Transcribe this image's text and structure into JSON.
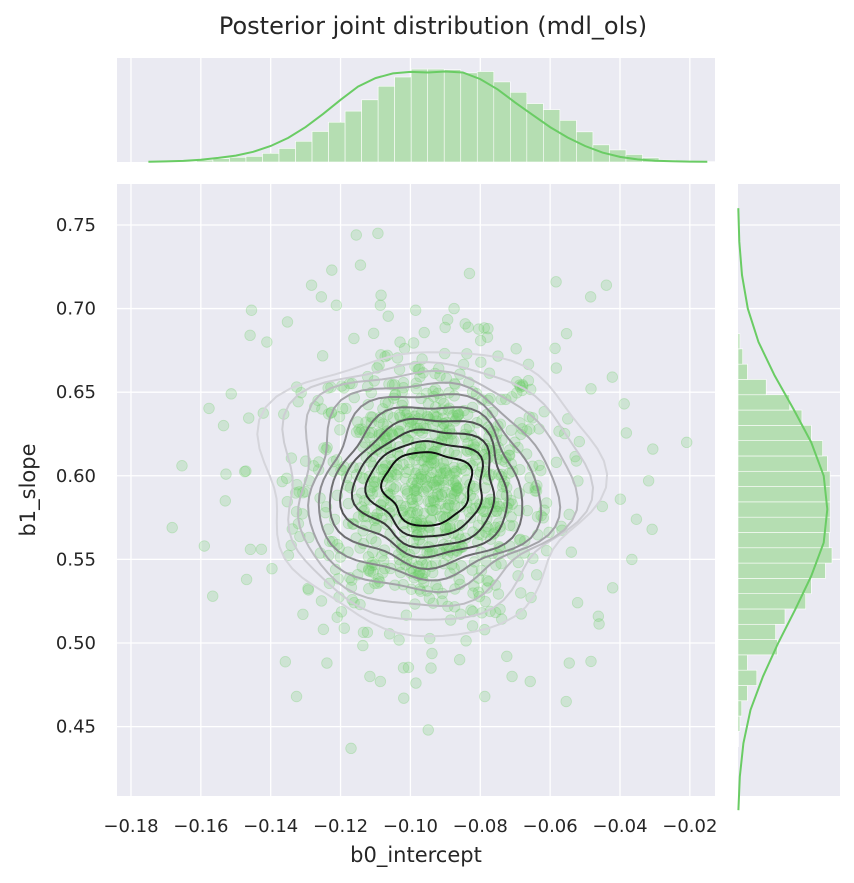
{
  "chart_data": {
    "type": "scatter",
    "title": "Posterior joint distribution (mdl_ols)",
    "xlabel": "b0_intercept",
    "ylabel": "b1_slope",
    "xlim": [
      -0.184,
      -0.0128
    ],
    "ylim": [
      0.4085,
      0.7745
    ],
    "x_ticks": [
      -0.18,
      -0.16,
      -0.14,
      -0.12,
      -0.1,
      -0.08,
      -0.06,
      -0.04,
      -0.02
    ],
    "x_tick_labels": [
      "−0.18",
      "−0.16",
      "−0.14",
      "−0.12",
      "−0.10",
      "−0.08",
      "−0.06",
      "−0.04",
      "−0.02"
    ],
    "y_ticks": [
      0.45,
      0.5,
      0.55,
      0.6,
      0.65,
      0.7,
      0.75
    ],
    "y_tick_labels": [
      "0.45",
      "0.50",
      "0.55",
      "0.60",
      "0.65",
      "0.70",
      "0.75"
    ],
    "grid": true,
    "colors": {
      "panel_bg": "#eaeaf2",
      "grid": "#ffffff",
      "points": "#6acc64",
      "hist_fill": "#b5deb2",
      "kde_line": "#6acc64",
      "contour_dark": "#111111",
      "contour_light": "#e2e2e8"
    },
    "points_summary": {
      "x_mean": -0.095,
      "x_sd": 0.018,
      "y_mean": 0.593,
      "y_sd": 0.041,
      "n_shown": 900
    },
    "points": [
      [
        -0.1682,
        0.569
      ],
      [
        -0.1654,
        0.606
      ],
      [
        -0.159,
        0.558
      ],
      [
        -0.1566,
        0.528
      ],
      [
        -0.1455,
        0.699
      ],
      [
        -0.1411,
        0.68
      ],
      [
        -0.1326,
        0.468
      ],
      [
        -0.117,
        0.437
      ],
      [
        -0.1155,
        0.744
      ],
      [
        -0.1093,
        0.745
      ],
      [
        -0.1086,
        0.702
      ],
      [
        -0.1084,
        0.708
      ],
      [
        -0.0949,
        0.448
      ],
      [
        -0.0831,
        0.721
      ],
      [
        -0.0583,
        0.716
      ],
      [
        -0.0554,
        0.465
      ],
      [
        -0.0483,
        0.489
      ],
      [
        -0.0484,
        0.707
      ],
      [
        -0.0439,
        0.714
      ],
      [
        -0.0366,
        0.55
      ],
      [
        -0.0308,
        0.568
      ],
      [
        -0.0318,
        0.597
      ],
      [
        -0.0306,
        0.616
      ],
      [
        -0.0209,
        0.62
      ],
      [
        -0.1225,
        0.723
      ],
      [
        -0.1143,
        0.726
      ],
      [
        -0.1283,
        0.714
      ],
      [
        -0.1255,
        0.707
      ],
      [
        -0.1212,
        0.702
      ],
      [
        -0.0985,
        0.699
      ],
      [
        -0.0875,
        0.7
      ],
      [
        -0.0778,
        0.688
      ],
      [
        -0.1019,
        0.467
      ],
      [
        -0.1086,
        0.477
      ],
      [
        -0.1239,
        0.488
      ],
      [
        -0.0941,
        0.485
      ],
      [
        -0.0859,
        0.49
      ],
      [
        -0.0787,
        0.468
      ],
      [
        -0.0709,
        0.48
      ],
      [
        -0.0657,
        0.477
      ],
      [
        -0.0724,
        0.492
      ],
      [
        -0.1528,
        0.601
      ],
      [
        -0.1535,
        0.63
      ],
      [
        -0.1513,
        0.649
      ],
      [
        -0.1459,
        0.684
      ],
      [
        -0.153,
        0.585
      ],
      [
        -0.1458,
        0.556
      ],
      [
        -0.1469,
        0.538
      ],
      [
        -0.0388,
        0.643
      ],
      [
        -0.0422,
        0.659
      ],
      [
        -0.0483,
        0.652
      ],
      [
        -0.0353,
        0.574
      ],
      [
        -0.0399,
        0.586
      ],
      [
        -0.0421,
        0.533
      ],
      [
        -0.0462,
        0.516
      ],
      [
        -0.0553,
        0.685
      ],
      [
        -0.1352,
        0.692
      ],
      [
        -0.1116,
        0.48
      ]
    ]
  },
  "marginals": {
    "top_hist": {
      "bin_start": -0.166,
      "bin_width": 0.00473,
      "densities": [
        0.004,
        0.01,
        0.018,
        0.025,
        0.03,
        0.046,
        0.072,
        0.11,
        0.162,
        0.211,
        0.27,
        0.33,
        0.402,
        0.451,
        0.493,
        0.493,
        0.49,
        0.473,
        0.48,
        0.425,
        0.37,
        0.31,
        0.278,
        0.221,
        0.16,
        0.091,
        0.064,
        0.04,
        0.022,
        0.01,
        0.006,
        0.003,
        0.002
      ]
    },
    "top_kde": {
      "x": [
        -0.175,
        -0.17,
        -0.165,
        -0.16,
        -0.155,
        -0.15,
        -0.145,
        -0.14,
        -0.135,
        -0.13,
        -0.125,
        -0.12,
        -0.115,
        -0.11,
        -0.105,
        -0.1,
        -0.095,
        -0.09,
        -0.085,
        -0.08,
        -0.075,
        -0.07,
        -0.065,
        -0.06,
        -0.055,
        -0.05,
        -0.045,
        -0.04,
        -0.035,
        -0.03,
        -0.025,
        -0.02,
        -0.015
      ],
      "y": [
        0.001,
        0.003,
        0.006,
        0.012,
        0.022,
        0.034,
        0.054,
        0.085,
        0.128,
        0.185,
        0.255,
        0.33,
        0.4,
        0.445,
        0.47,
        0.478,
        0.475,
        0.48,
        0.475,
        0.44,
        0.385,
        0.315,
        0.25,
        0.185,
        0.13,
        0.085,
        0.05,
        0.027,
        0.014,
        0.007,
        0.004,
        0.002,
        0.001
      ]
    },
    "right_hist": {
      "bin_start": 0.438,
      "bin_width": 0.00915,
      "densities": [
        0.005,
        0.02,
        0.04,
        0.1,
        0.2,
        0.1,
        0.42,
        0.4,
        0.5,
        0.72,
        0.78,
        0.93,
        1.0,
        0.97,
        0.98,
        0.98,
        0.98,
        0.98,
        0.95,
        0.9,
        0.78,
        0.68,
        0.55,
        0.3,
        0.1,
        0.05,
        0.02
      ]
    },
    "right_kde": {
      "y": [
        0.4,
        0.42,
        0.44,
        0.46,
        0.48,
        0.5,
        0.52,
        0.54,
        0.56,
        0.58,
        0.6,
        0.62,
        0.64,
        0.66,
        0.68,
        0.7,
        0.72,
        0.74,
        0.76
      ],
      "x": [
        0.005,
        0.02,
        0.06,
        0.14,
        0.28,
        0.45,
        0.64,
        0.82,
        0.96,
        1.0,
        0.96,
        0.82,
        0.62,
        0.41,
        0.23,
        0.11,
        0.045,
        0.015,
        0.003
      ]
    }
  },
  "kde_contours": {
    "center": [
      -0.095,
      0.593
    ],
    "levels": [
      {
        "rx": 0.0475,
        "ry": 0.085,
        "shade": 0.06
      },
      {
        "rx": 0.043,
        "ry": 0.077,
        "shade": 0.1
      },
      {
        "rx": 0.039,
        "ry": 0.07,
        "shade": 0.18
      },
      {
        "rx": 0.035,
        "ry": 0.062,
        "shade": 0.3
      },
      {
        "rx": 0.031,
        "ry": 0.055,
        "shade": 0.42
      },
      {
        "rx": 0.027,
        "ry": 0.048,
        "shade": 0.55
      },
      {
        "rx": 0.0235,
        "ry": 0.041,
        "shade": 0.68
      },
      {
        "rx": 0.02,
        "ry": 0.035,
        "shade": 0.8
      },
      {
        "rx": 0.0165,
        "ry": 0.0285,
        "shade": 0.9
      },
      {
        "rx": 0.0125,
        "ry": 0.022,
        "shade": 1.0
      }
    ]
  }
}
